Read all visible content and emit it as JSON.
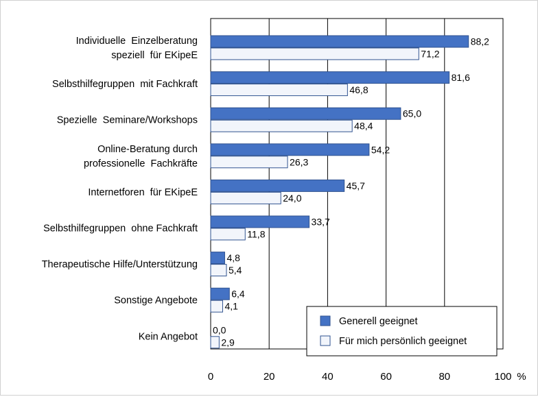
{
  "chart_data": {
    "type": "bar",
    "orientation": "horizontal",
    "categories": [
      [
        "Individuelle  Einzelberatung",
        "speziell  für EKipeE"
      ],
      [
        "Selbsthilfegruppen  mit Fachkraft"
      ],
      [
        "Spezielle  Seminare/Workshops"
      ],
      [
        "Online-Beratung durch",
        "professionelle  Fachkräfte"
      ],
      [
        "Internetforen  für EKipeE"
      ],
      [
        "Selbsthilfegruppen  ohne Fachkraft"
      ],
      [
        "Therapeutische Hilfe/Unterstützung"
      ],
      [
        "Sonstige Angebote"
      ],
      [
        "Kein Angebot"
      ]
    ],
    "series": [
      {
        "name": "Generell geeignet",
        "values": [
          88.2,
          81.6,
          65.0,
          54.2,
          45.7,
          33.7,
          4.8,
          6.4,
          0.0
        ],
        "labels": [
          "88,2",
          "81,6",
          "65,0",
          "54,2",
          "45,7",
          "33,7",
          "4,8",
          "6,4",
          "0,0"
        ],
        "color": "#4472c4"
      },
      {
        "name": "Für mich persönlich geeignet",
        "values": [
          71.2,
          46.8,
          48.4,
          26.3,
          24.0,
          11.8,
          5.4,
          4.1,
          2.9
        ],
        "labels": [
          "71,2",
          "46,8",
          "48,4",
          "26,3",
          "24,0",
          "11,8",
          "5,4",
          "4,1",
          "2,9"
        ],
        "color": "#f2f5fb"
      }
    ],
    "xlim": [
      0,
      100
    ],
    "xticks": [
      "0",
      "20",
      "40",
      "60",
      "80",
      "100"
    ],
    "xunit": "%",
    "grid": true,
    "legend_position": "bottom-right",
    "bar_outline_color": "#2f528f"
  }
}
